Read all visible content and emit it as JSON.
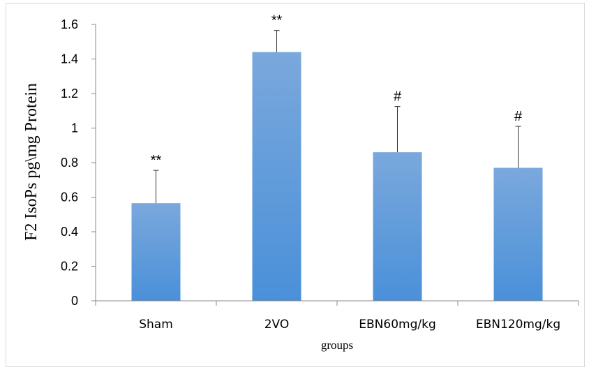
{
  "chart_data": {
    "type": "bar",
    "title": "",
    "xlabel": "groups",
    "ylabel": "F2 IsoPs pg\\mg Protein",
    "ylim": [
      0,
      1.6
    ],
    "yticks": [
      "0",
      "0.2",
      "0.4",
      "0.6",
      "0.8",
      "1",
      "1.2",
      "1.4",
      "1.6"
    ],
    "categories": [
      "Sham",
      "2VO",
      "EBN60mg/kg",
      "EBN120mg/kg"
    ],
    "values": [
      0.565,
      1.44,
      0.86,
      0.77
    ],
    "errors": [
      0.19,
      0.125,
      0.265,
      0.24
    ],
    "significance": [
      "**",
      "**",
      "#",
      "#"
    ],
    "grid": false,
    "legend": "none",
    "bar_color_top": "#7aa8dc",
    "bar_color_bottom": "#4a90d9",
    "axis_color": "#888888"
  }
}
